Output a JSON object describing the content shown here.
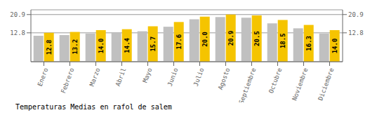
{
  "chart_data": {
    "type": "bar",
    "title": "Temperaturas Medias en rafol de salem",
    "categories": [
      "Enero",
      "Febrero",
      "Marzo",
      "Abril",
      "Mayo",
      "Junio",
      "Julio",
      "Agosto",
      "Septiembre",
      "Octubre",
      "Noviembre",
      "Diciembre"
    ],
    "series": [
      {
        "color": "#C0C0C0",
        "values": [
          11.5,
          11.8,
          12.5,
          12.8,
          13.5,
          15.5,
          18.8,
          19.8,
          19.5,
          17.0,
          14.8,
          12.5
        ]
      },
      {
        "color": "#F5C400",
        "values": [
          12.8,
          13.2,
          14.0,
          14.4,
          15.7,
          17.6,
          20.0,
          20.9,
          20.5,
          18.5,
          16.3,
          14.0
        ],
        "data_labels": true,
        "value_labels": [
          "12.8",
          "13.2",
          "14.0",
          "14.4",
          "15.7",
          "17.6",
          "20.0",
          "20.9",
          "20.5",
          "18.5",
          "16.3",
          "14.0"
        ]
      }
    ],
    "ylim": [
      0,
      23.0
    ],
    "yticks": [
      12.8,
      20.9
    ],
    "y2lim": [
      0,
      23.0
    ],
    "y2ticks": [
      12.8,
      20.9
    ],
    "grid": true
  }
}
